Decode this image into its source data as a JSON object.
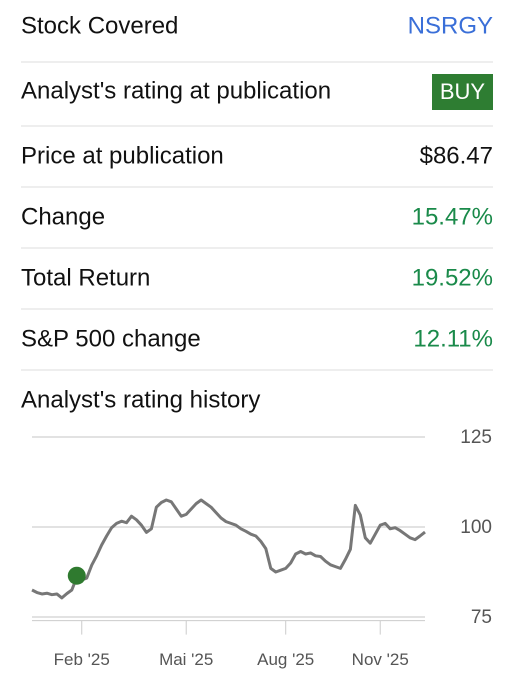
{
  "rows": [
    {
      "label": "Stock Covered",
      "value": "NSRGY"
    },
    {
      "label": "Analyst's rating at publication",
      "value": "BUY"
    },
    {
      "label": "Price at publication",
      "value": "$86.47"
    },
    {
      "label": "Change",
      "value": "15.47%"
    },
    {
      "label": "Total Return",
      "value": "19.52%"
    },
    {
      "label": "S&P 500 change",
      "value": "12.11%"
    }
  ],
  "chart_data": {
    "type": "line",
    "title": "Analyst's rating history",
    "categories": [
      null,
      null,
      null,
      null,
      null,
      null,
      null,
      null,
      null,
      null,
      "Feb '25",
      null,
      null,
      null,
      null,
      null,
      null,
      null,
      null,
      null,
      null,
      null,
      null,
      null,
      null,
      null,
      null,
      null,
      null,
      null,
      null,
      "Mai '25",
      null,
      null,
      null,
      null,
      null,
      null,
      null,
      null,
      null,
      null,
      null,
      null,
      null,
      null,
      null,
      null,
      null,
      null,
      null,
      "Aug '25",
      null,
      null,
      null,
      null,
      null,
      null,
      null,
      null,
      null,
      null,
      null,
      null,
      null,
      null,
      null,
      null,
      null,
      null,
      "Nov '25",
      null,
      null,
      null,
      null,
      null,
      null,
      null,
      null,
      null
    ],
    "series": [
      {
        "color": "#777777",
        "values": [
          82.5,
          81.8,
          81.4,
          81.6,
          81.2,
          81.4,
          80.3,
          81.5,
          82.5,
          86,
          85.3,
          85.8,
          89.4,
          92,
          95,
          97.5,
          99.8,
          101,
          101.6,
          101.2,
          103,
          102,
          100.5,
          98.5,
          99.5,
          105.5,
          106.8,
          107.5,
          107,
          105,
          103,
          103.5,
          105,
          106.5,
          107.5,
          106.5,
          105.5,
          104,
          102.5,
          101.5,
          101,
          100.5,
          99.5,
          98.8,
          98,
          97.5,
          96,
          94,
          88.5,
          87.5,
          88,
          88.5,
          90,
          92.5,
          93.2,
          92.5,
          92.8,
          92,
          91.8,
          90.5,
          89.5,
          89,
          88.5,
          91,
          93.8,
          106,
          103.3,
          97,
          95.5,
          98,
          100.5,
          101,
          99.5,
          99.8,
          99,
          98,
          97,
          96.5,
          97.5,
          98.6
        ]
      },
      {
        "color": "#2f7a2f",
        "values": [
          null,
          null,
          null,
          null,
          null,
          null,
          null,
          null,
          null,
          86.47,
          null,
          null,
          null,
          null,
          null,
          null,
          null,
          null,
          null,
          null,
          null,
          null,
          null,
          null,
          null,
          null,
          null,
          null,
          null,
          null,
          null,
          null,
          null,
          null,
          null,
          null,
          null,
          null,
          null,
          null,
          null,
          null,
          null,
          null,
          null,
          null,
          null,
          null,
          null,
          null,
          null,
          null,
          null,
          null,
          null,
          null,
          null,
          null,
          null,
          null,
          null,
          null,
          null,
          null,
          null,
          null,
          null,
          null,
          null,
          null,
          null,
          null,
          null,
          null,
          null,
          null,
          null,
          null,
          null,
          null
        ]
      }
    ],
    "ylim": [
      74,
      125
    ],
    "yticks": [
      75,
      100,
      125
    ],
    "grid": true
  }
}
